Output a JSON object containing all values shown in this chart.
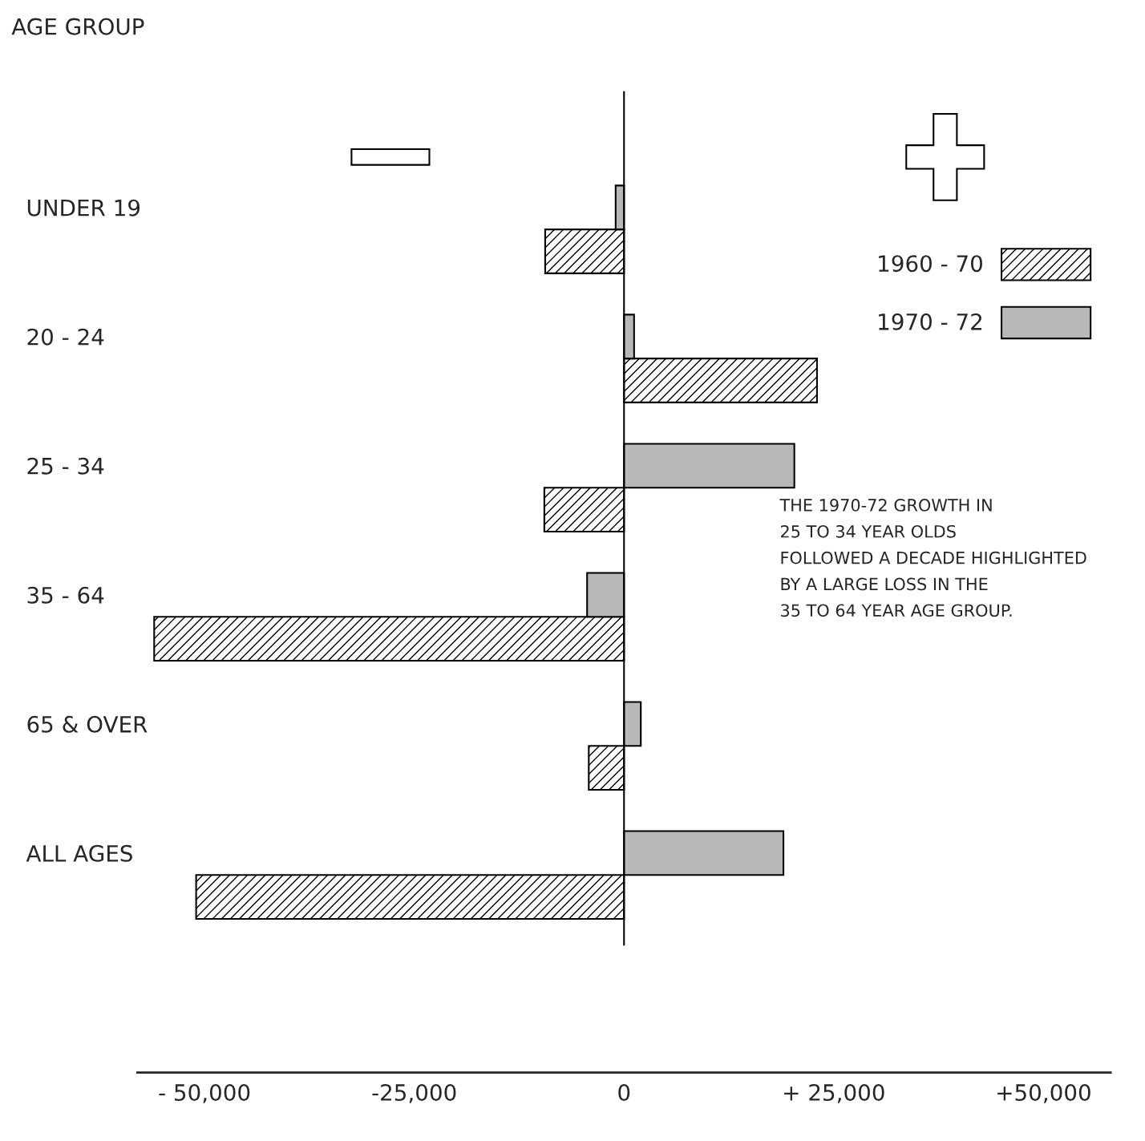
{
  "chart_data": {
    "type": "bar",
    "orientation": "horizontal",
    "ylabel": "AGE GROUP",
    "categories": [
      "UNDER 19",
      "20 - 24",
      "25 - 34",
      "35 - 64",
      "65 & OVER",
      "ALL AGES"
    ],
    "series": [
      {
        "name": "1960 - 70",
        "color": "#000000",
        "values": [
          -9400,
          23000,
          -9500,
          -56000,
          -4200,
          -51000
        ]
      },
      {
        "name": "1970 - 72",
        "color": "#b8b8b8",
        "values": [
          -1000,
          1200,
          20300,
          -4400,
          2000,
          19000
        ]
      }
    ],
    "xlim": [
      -58000,
      58000
    ],
    "xticks": [
      {
        "value": -50000,
        "label": "- 50,000"
      },
      {
        "value": -25000,
        "label": "-25,000"
      },
      0,
      {
        "value": 25000,
        "label": "+ 25,000"
      },
      {
        "value": 50000,
        "label": "+50,000"
      }
    ],
    "ref_lines": [
      {
        "axis": "x",
        "value": 0
      }
    ],
    "legend": "top right",
    "grid": false,
    "annotations": [
      "THE 1970-72 GROWTH IN\n25 TO 34 YEAR OLDS\nFOLLOWED A DECADE HIGHLIGHTED\nBY A LARGE LOSS IN THE\n35 TO 64 YEAR AGE GROUP."
    ]
  }
}
